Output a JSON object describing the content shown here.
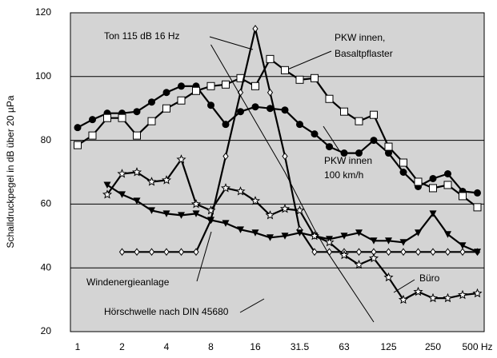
{
  "chart_data": {
    "type": "line",
    "ylabel": "Schalldruckpegel in dB über 20 µPa",
    "categories": [
      "1",
      null,
      null,
      "2",
      null,
      null,
      "4",
      null,
      null,
      "8",
      null,
      null,
      "16",
      null,
      null,
      "31.5",
      null,
      null,
      "63",
      null,
      null,
      "125",
      null,
      null,
      "250",
      null,
      null,
      "500 Hz"
    ],
    "ylim": [
      20,
      120
    ],
    "yticks": [
      20,
      40,
      60,
      80,
      100,
      120
    ],
    "grid": true,
    "series": [
      {
        "name": [
          "PKW innen",
          "100 km/h"
        ],
        "color": "#000000",
        "marker": "circle",
        "values": [
          84,
          86.5,
          88.5,
          88.5,
          89,
          92,
          95,
          97,
          97,
          91,
          85,
          89,
          90.5,
          90,
          89.5,
          85,
          82,
          78,
          76,
          76,
          80,
          76,
          70,
          65.5,
          68,
          69.5,
          64,
          63.5
        ]
      },
      {
        "name": [
          "PKW innen,",
          "Basaltpflaster"
        ],
        "color": "#000000",
        "marker": "square",
        "values": [
          78.5,
          81.5,
          87,
          87,
          81.5,
          86,
          90,
          92.5,
          95.5,
          97,
          97.5,
          99.5,
          97,
          105.5,
          102,
          99,
          99.5,
          93,
          89,
          86,
          88,
          78,
          73,
          67,
          65,
          66,
          62.5,
          59
        ]
      },
      {
        "name": [
          "Ton 115 dB 16 Hz"
        ],
        "color": "#000000",
        "marker": "diamond",
        "values": [
          null,
          null,
          null,
          45,
          45,
          45,
          45,
          45,
          45,
          55,
          75,
          95,
          115,
          95,
          75,
          52,
          45,
          45,
          45,
          45,
          45,
          45,
          45,
          45,
          45,
          45,
          45,
          45
        ]
      },
      {
        "name": [
          "Windenergieanlage"
        ],
        "color": "#000000",
        "marker": "triangle",
        "values": [
          null,
          null,
          66,
          63,
          61,
          58,
          57,
          56.5,
          57,
          55,
          54,
          52,
          51,
          49.5,
          50,
          51,
          50,
          49,
          50,
          51,
          48.5,
          48.5,
          48,
          51,
          57,
          50.5,
          47,
          45
        ]
      },
      {
        "name": [
          "Büro"
        ],
        "color": "#000000",
        "marker": "star",
        "values": [
          null,
          null,
          63,
          69.5,
          70,
          67,
          67.5,
          74,
          60,
          58,
          65,
          64,
          61,
          56.5,
          58.5,
          58,
          50,
          48,
          44,
          41,
          43,
          37,
          30,
          32.5,
          30.5,
          30.5,
          31.5,
          32
        ]
      },
      {
        "name": [
          "Hörschwelle nach DIN 45680"
        ],
        "color": "#000000",
        "marker": "none",
        "values": [
          null,
          null,
          null,
          null,
          null,
          null,
          null,
          null,
          null,
          110,
          102,
          94,
          86,
          78,
          70,
          61,
          52,
          44,
          37,
          30,
          23,
          null,
          null,
          null,
          null,
          null,
          null,
          null
        ]
      }
    ]
  }
}
